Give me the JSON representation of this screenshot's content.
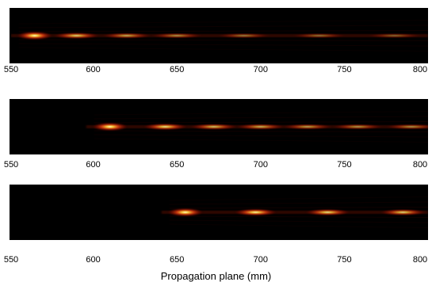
{
  "chart_data": [
    {
      "type": "heatmap",
      "xlim": [
        550,
        800
      ],
      "xticks": [
        "550",
        "600",
        "650",
        "700",
        "750",
        "800"
      ],
      "colormap": "hot",
      "peaks": [
        {
          "x": 565,
          "intensity": 1.0
        },
        {
          "x": 590,
          "intensity": 0.55
        },
        {
          "x": 620,
          "intensity": 0.4
        },
        {
          "x": 650,
          "intensity": 0.3
        },
        {
          "x": 690,
          "intensity": 0.22
        },
        {
          "x": 735,
          "intensity": 0.18
        },
        {
          "x": 780,
          "intensity": 0.14
        }
      ]
    },
    {
      "type": "heatmap",
      "xlim": [
        550,
        800
      ],
      "xticks": [
        "550",
        "600",
        "650",
        "700",
        "750",
        "800"
      ],
      "colormap": "hot",
      "peaks": [
        {
          "x": 610,
          "intensity": 1.0
        },
        {
          "x": 643,
          "intensity": 0.62
        },
        {
          "x": 672,
          "intensity": 0.48
        },
        {
          "x": 700,
          "intensity": 0.42
        },
        {
          "x": 728,
          "intensity": 0.36
        },
        {
          "x": 758,
          "intensity": 0.32
        },
        {
          "x": 790,
          "intensity": 0.3
        }
      ]
    },
    {
      "type": "heatmap",
      "xlim": [
        550,
        800
      ],
      "xticks": [
        "550",
        "600",
        "650",
        "700",
        "750",
        "800"
      ],
      "colormap": "hot",
      "peaks": [
        {
          "x": 655,
          "intensity": 1.0
        },
        {
          "x": 697,
          "intensity": 0.7
        },
        {
          "x": 740,
          "intensity": 0.6
        },
        {
          "x": 785,
          "intensity": 0.55
        }
      ],
      "xlabel": "Propagation plane (mm)"
    }
  ]
}
